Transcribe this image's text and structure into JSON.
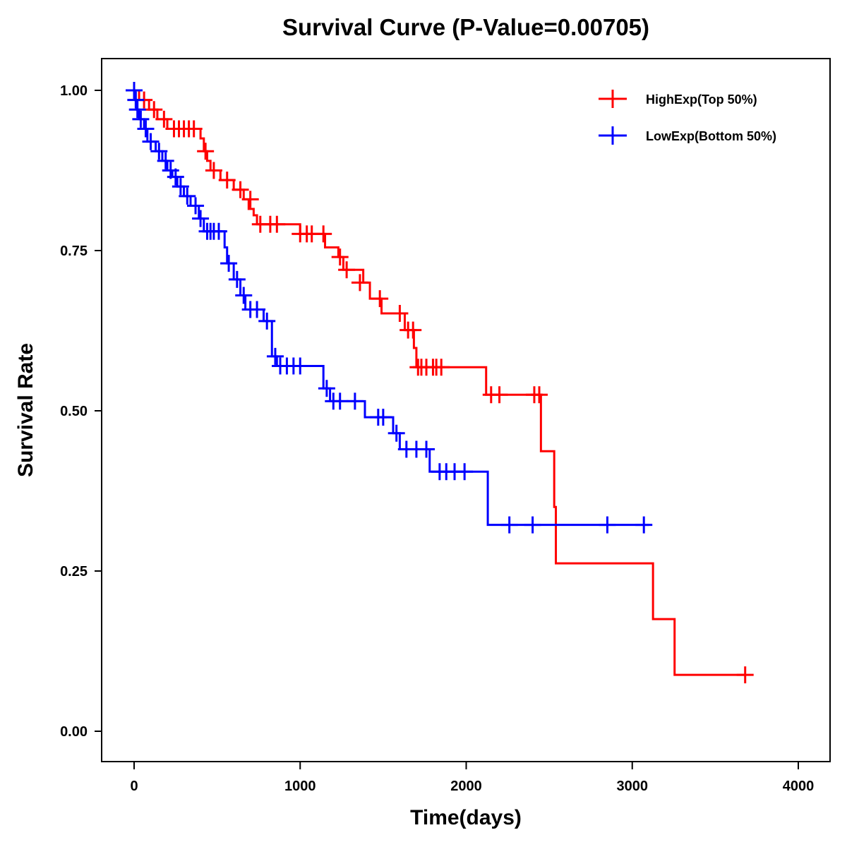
{
  "chart_data": {
    "type": "line",
    "subtype": "kaplan-meier-step",
    "title": "Survival Curve (P-Value=0.00705)",
    "xlabel": "Time(days)",
    "ylabel": "Survival Rate",
    "xlim": [
      -200,
      4200
    ],
    "ylim": [
      -0.05,
      1.05
    ],
    "xticks": [
      0,
      1000,
      2000,
      3000,
      4000
    ],
    "xtick_labels": [
      "0",
      "1000",
      "2000",
      "3000",
      "4000"
    ],
    "yticks": [
      0,
      0.25,
      0.5,
      0.75,
      1.0
    ],
    "ytick_labels": [
      "0.00",
      "0.25",
      "0.50",
      "0.75",
      "1.00"
    ],
    "grid": false,
    "legend_position": "top-right",
    "series": [
      {
        "name": "HighExp(Top 50%)",
        "color": "#ff0000",
        "steps": [
          [
            0,
            1.0
          ],
          [
            30,
            0.985
          ],
          [
            90,
            0.97
          ],
          [
            140,
            0.955
          ],
          [
            200,
            0.94
          ],
          [
            400,
            0.925
          ],
          [
            420,
            0.905
          ],
          [
            440,
            0.89
          ],
          [
            460,
            0.875
          ],
          [
            520,
            0.86
          ],
          [
            600,
            0.845
          ],
          [
            660,
            0.83
          ],
          [
            690,
            0.815
          ],
          [
            720,
            0.805
          ],
          [
            740,
            0.791
          ],
          [
            1000,
            0.776
          ],
          [
            1150,
            0.755
          ],
          [
            1230,
            0.74
          ],
          [
            1260,
            0.72
          ],
          [
            1380,
            0.7
          ],
          [
            1420,
            0.675
          ],
          [
            1490,
            0.652
          ],
          [
            1630,
            0.626
          ],
          [
            1685,
            0.598
          ],
          [
            1700,
            0.568
          ],
          [
            2120,
            0.525
          ],
          [
            2450,
            0.437
          ],
          [
            2530,
            0.35
          ],
          [
            2540,
            0.262
          ],
          [
            3125,
            0.175
          ],
          [
            3255,
            0.088
          ],
          [
            3680,
            0.088
          ]
        ],
        "censored": [
          [
            0,
            1.0
          ],
          [
            60,
            0.985
          ],
          [
            120,
            0.97
          ],
          [
            180,
            0.955
          ],
          [
            240,
            0.94
          ],
          [
            270,
            0.94
          ],
          [
            300,
            0.94
          ],
          [
            330,
            0.94
          ],
          [
            360,
            0.94
          ],
          [
            430,
            0.905
          ],
          [
            480,
            0.875
          ],
          [
            560,
            0.86
          ],
          [
            640,
            0.845
          ],
          [
            700,
            0.83
          ],
          [
            760,
            0.791
          ],
          [
            820,
            0.791
          ],
          [
            860,
            0.791
          ],
          [
            1000,
            0.776
          ],
          [
            1040,
            0.776
          ],
          [
            1070,
            0.776
          ],
          [
            1140,
            0.776
          ],
          [
            1240,
            0.74
          ],
          [
            1280,
            0.72
          ],
          [
            1360,
            0.7
          ],
          [
            1480,
            0.675
          ],
          [
            1600,
            0.652
          ],
          [
            1650,
            0.626
          ],
          [
            1680,
            0.626
          ],
          [
            1710,
            0.568
          ],
          [
            1730,
            0.568
          ],
          [
            1760,
            0.568
          ],
          [
            1800,
            0.568
          ],
          [
            1820,
            0.568
          ],
          [
            1850,
            0.568
          ],
          [
            2150,
            0.525
          ],
          [
            2200,
            0.525
          ],
          [
            2410,
            0.525
          ],
          [
            2440,
            0.525
          ],
          [
            3680,
            0.088
          ]
        ]
      },
      {
        "name": "LowExp(Bottom 50%)",
        "color": "#0000ff",
        "steps": [
          [
            0,
            1.0
          ],
          [
            5,
            0.985
          ],
          [
            15,
            0.97
          ],
          [
            30,
            0.955
          ],
          [
            60,
            0.94
          ],
          [
            80,
            0.92
          ],
          [
            130,
            0.905
          ],
          [
            170,
            0.89
          ],
          [
            200,
            0.875
          ],
          [
            230,
            0.865
          ],
          [
            260,
            0.85
          ],
          [
            300,
            0.835
          ],
          [
            340,
            0.82
          ],
          [
            390,
            0.8
          ],
          [
            420,
            0.78
          ],
          [
            545,
            0.755
          ],
          [
            560,
            0.73
          ],
          [
            600,
            0.705
          ],
          [
            640,
            0.68
          ],
          [
            670,
            0.658
          ],
          [
            780,
            0.64
          ],
          [
            830,
            0.585
          ],
          [
            860,
            0.57
          ],
          [
            1140,
            0.535
          ],
          [
            1180,
            0.515
          ],
          [
            1390,
            0.49
          ],
          [
            1560,
            0.465
          ],
          [
            1600,
            0.44
          ],
          [
            1780,
            0.405
          ],
          [
            2130,
            0.322
          ],
          [
            3100,
            0.322
          ]
        ],
        "censored": [
          [
            0,
            1.0
          ],
          [
            10,
            0.985
          ],
          [
            20,
            0.97
          ],
          [
            40,
            0.955
          ],
          [
            70,
            0.94
          ],
          [
            100,
            0.92
          ],
          [
            150,
            0.905
          ],
          [
            190,
            0.89
          ],
          [
            220,
            0.875
          ],
          [
            250,
            0.865
          ],
          [
            280,
            0.85
          ],
          [
            320,
            0.835
          ],
          [
            370,
            0.82
          ],
          [
            400,
            0.8
          ],
          [
            440,
            0.78
          ],
          [
            460,
            0.78
          ],
          [
            480,
            0.78
          ],
          [
            510,
            0.78
          ],
          [
            570,
            0.73
          ],
          [
            620,
            0.705
          ],
          [
            660,
            0.68
          ],
          [
            700,
            0.658
          ],
          [
            740,
            0.658
          ],
          [
            800,
            0.64
          ],
          [
            850,
            0.585
          ],
          [
            880,
            0.57
          ],
          [
            920,
            0.57
          ],
          [
            960,
            0.57
          ],
          [
            1000,
            0.57
          ],
          [
            1160,
            0.535
          ],
          [
            1200,
            0.515
          ],
          [
            1240,
            0.515
          ],
          [
            1330,
            0.515
          ],
          [
            1470,
            0.49
          ],
          [
            1500,
            0.49
          ],
          [
            1580,
            0.465
          ],
          [
            1640,
            0.44
          ],
          [
            1700,
            0.44
          ],
          [
            1760,
            0.44
          ],
          [
            1840,
            0.405
          ],
          [
            1880,
            0.405
          ],
          [
            1930,
            0.405
          ],
          [
            1990,
            0.405
          ],
          [
            2260,
            0.322
          ],
          [
            2400,
            0.322
          ],
          [
            2850,
            0.322
          ],
          [
            3070,
            0.322
          ]
        ]
      }
    ]
  }
}
